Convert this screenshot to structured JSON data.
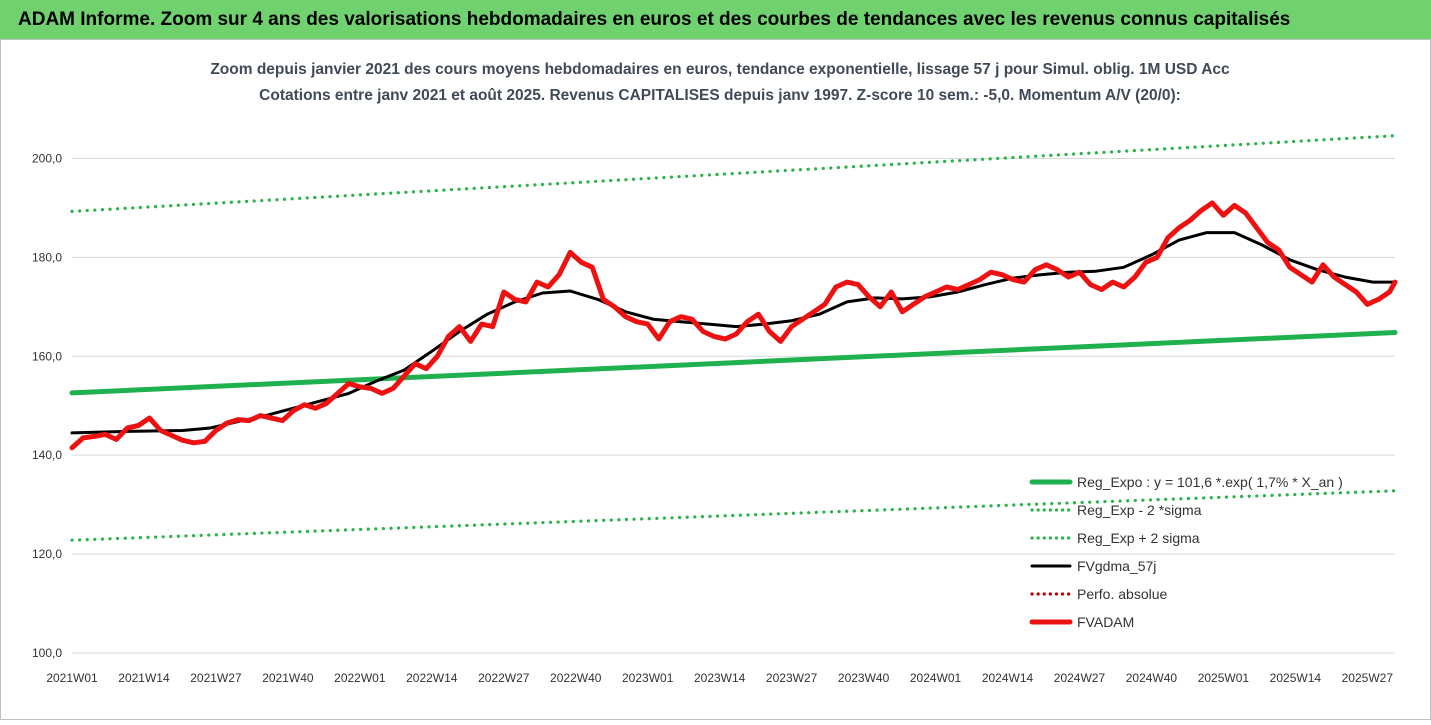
{
  "banner": {
    "title": "ADAM Informe. Zoom sur 4 ans des valorisations hebdomadaires en euros et des courbes de tendances avec les revenus connus capitalisés"
  },
  "colors": {
    "banner_bg": "#6fd26f",
    "reg_expo": "#1fb14f",
    "sigma_bands": "#2bb24c",
    "fvgdma": "#000000",
    "perfo": "#c00000",
    "fvadam": "#ee1111"
  },
  "chart_data": {
    "type": "line",
    "title": "Zoom depuis janvier 2021 des cours moyens hebdomadaires en euros, tendance exponentielle, lissage 57 j pour Simul. oblig. 1M USD Acc",
    "subtitle": "Cotations entre janv 2021 et août 2025.  Revenus CAPITALISES depuis janv 1997. Z-score 10 sem.: -5,0. Momentum A/V (20/0):",
    "xlabel": "",
    "ylabel": "",
    "ylim": [
      100,
      210
    ],
    "yticks": [
      "100,0",
      "120,0",
      "140,0",
      "160,0",
      "180,0",
      "200,0"
    ],
    "ytick_values": [
      100,
      120,
      140,
      160,
      180,
      200
    ],
    "xticks": [
      "2021W01",
      "2021W14",
      "2021W27",
      "2021W40",
      "2022W01",
      "2022W14",
      "2022W27",
      "2022W40",
      "2023W01",
      "2023W14",
      "2023W27",
      "2023W40",
      "2024W01",
      "2024W14",
      "2024W27",
      "2024W40",
      "2025W01",
      "2025W14",
      "2025W27"
    ],
    "xtick_weeks": [
      0,
      13,
      26,
      39,
      52,
      65,
      78,
      91,
      104,
      117,
      130,
      143,
      156,
      169,
      182,
      195,
      208,
      221,
      234
    ],
    "week_count": 240,
    "grid": "horizontal",
    "legend_position": "bottom-right",
    "series": [
      {
        "name": "Reg_Expo : y = 101,6 *.exp( 1,7% * X_an )",
        "style": "solid-thick",
        "color": "#1fb14f",
        "x": [
          0,
          239
        ],
        "values": [
          152.6,
          164.8
        ]
      },
      {
        "name": "Reg_Exp - 2 *sigma",
        "style": "dotted",
        "color": "#2bb24c",
        "x": [
          0,
          239
        ],
        "values": [
          122.8,
          132.8
        ]
      },
      {
        "name": "Reg_Exp + 2 sigma",
        "style": "dotted",
        "color": "#2bb24c",
        "x": [
          0,
          239
        ],
        "values": [
          189.3,
          204.6
        ]
      },
      {
        "name": "FVgdma_57j",
        "style": "solid",
        "color": "#000000",
        "x": [
          0,
          10,
          20,
          25,
          30,
          35,
          40,
          45,
          50,
          55,
          60,
          65,
          70,
          75,
          80,
          85,
          90,
          95,
          100,
          105,
          110,
          115,
          120,
          125,
          130,
          135,
          140,
          145,
          150,
          155,
          160,
          165,
          170,
          175,
          180,
          185,
          190,
          195,
          200,
          205,
          210,
          215,
          220,
          225,
          230,
          235,
          239
        ],
        "values": [
          144.5,
          144.8,
          145.0,
          145.5,
          146.8,
          148.0,
          149.5,
          151.0,
          152.5,
          155.0,
          157.2,
          161.0,
          165.0,
          168.5,
          171.0,
          172.8,
          173.2,
          171.5,
          169.0,
          167.5,
          167.0,
          166.5,
          166.0,
          166.5,
          167.2,
          168.5,
          171.0,
          171.8,
          171.6,
          172.0,
          173.0,
          174.5,
          175.8,
          176.5,
          177.0,
          177.2,
          178.0,
          180.5,
          183.5,
          185.0,
          185.0,
          182.5,
          179.5,
          177.5,
          176.0,
          175.0,
          175.0
        ]
      },
      {
        "name": "Perfo. absolue",
        "style": "dotted",
        "color": "#c00000",
        "x": [],
        "values": []
      },
      {
        "name": "FVADAM",
        "style": "solid-thick",
        "color": "#ee1111",
        "x": [
          0,
          2,
          4,
          6,
          8,
          10,
          12,
          14,
          16,
          18,
          20,
          22,
          24,
          26,
          28,
          30,
          32,
          34,
          36,
          38,
          40,
          42,
          44,
          46,
          48,
          50,
          52,
          54,
          56,
          58,
          60,
          62,
          64,
          66,
          68,
          70,
          72,
          74,
          76,
          78,
          80,
          82,
          84,
          86,
          88,
          90,
          92,
          94,
          96,
          98,
          100,
          102,
          104,
          106,
          108,
          110,
          112,
          114,
          116,
          118,
          120,
          122,
          124,
          126,
          128,
          130,
          132,
          134,
          136,
          138,
          140,
          142,
          144,
          146,
          148,
          150,
          152,
          154,
          156,
          158,
          160,
          162,
          164,
          166,
          168,
          170,
          172,
          174,
          176,
          178,
          180,
          182,
          184,
          186,
          188,
          190,
          192,
          194,
          196,
          198,
          200,
          202,
          204,
          206,
          208,
          210,
          212,
          214,
          216,
          218,
          220,
          222,
          224,
          226,
          228,
          230,
          232,
          234,
          236,
          238,
          239
        ],
        "values": [
          141.5,
          143.5,
          143.8,
          144.2,
          143.2,
          145.5,
          146.0,
          147.5,
          145.0,
          144.0,
          143.0,
          142.5,
          142.8,
          145.0,
          146.5,
          147.2,
          147.0,
          148.0,
          147.5,
          147.0,
          149.0,
          150.2,
          149.5,
          150.5,
          152.5,
          154.5,
          153.8,
          153.5,
          152.5,
          153.5,
          156.0,
          158.5,
          157.5,
          160.0,
          164.0,
          166.0,
          163.0,
          166.5,
          166.0,
          173.0,
          171.5,
          171.0,
          175.0,
          174.0,
          176.5,
          181.0,
          179.0,
          178.0,
          171.5,
          170.0,
          168.0,
          167.0,
          166.5,
          163.5,
          167.0,
          168.0,
          167.5,
          165.0,
          164.0,
          163.5,
          164.5,
          167.0,
          168.5,
          165.0,
          163.0,
          166.0,
          167.5,
          169.0,
          170.5,
          174.0,
          175.0,
          174.5,
          172.0,
          170.0,
          173.0,
          169.0,
          170.5,
          172.0,
          173.0,
          174.0,
          173.5,
          174.5,
          175.5,
          177.0,
          176.5,
          175.5,
          175.0,
          177.5,
          178.5,
          177.5,
          176.0,
          177.0,
          174.5,
          173.5,
          175.0,
          174.0,
          176.0,
          179.0,
          180.0,
          184.0,
          186.0,
          187.5,
          189.5,
          191.0,
          188.5,
          190.5,
          189.0,
          186.0,
          183.0,
          181.5,
          178.0,
          176.5,
          175.0,
          178.5,
          176.0,
          174.5,
          173.0,
          170.5,
          171.5,
          173.0,
          175.0
        ]
      }
    ]
  }
}
